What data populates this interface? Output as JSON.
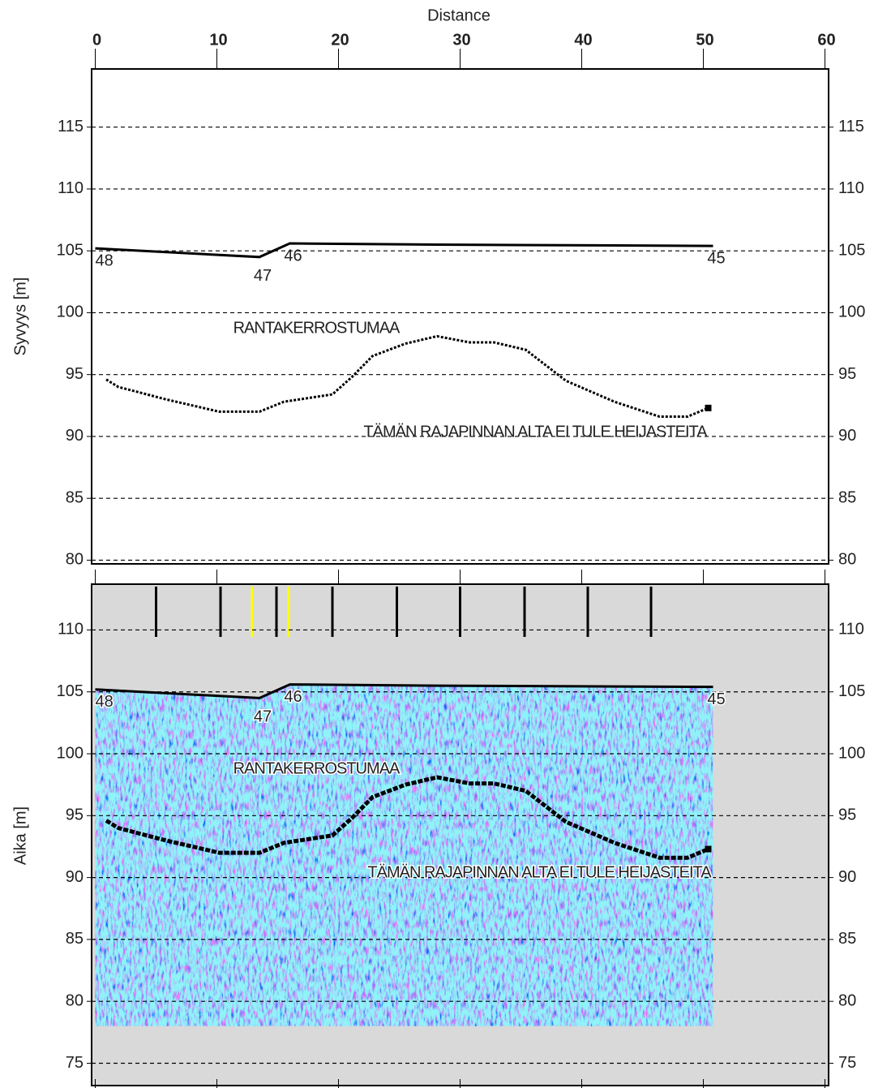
{
  "chart_data": [
    {
      "type": "line",
      "xlabel": "Distance",
      "ylabel": "Syvyys [m]",
      "xlim": [
        -0.3,
        60.3
      ],
      "xticks": [
        0,
        10,
        20,
        30,
        40,
        50,
        60
      ],
      "ylim": [
        79.7,
        119.7
      ],
      "yticks": [
        80,
        85,
        90,
        95,
        100,
        105,
        110,
        115
      ],
      "grid": true,
      "series": [
        {
          "color": "#000000",
          "style": "solid",
          "x": [
            0,
            13.5,
            16,
            28,
            50.8
          ],
          "values": [
            105.2,
            104.5,
            105.6,
            105.5,
            105.4
          ],
          "point_labels": [
            "48",
            "47",
            "46",
            null,
            "45"
          ]
        },
        {
          "color": "#000000",
          "style": "dashed",
          "x": [
            0.9,
            1.9,
            5.8,
            10.2,
            13.5,
            15.5,
            19.5,
            21.1,
            22.8,
            25.5,
            28.1,
            30.8,
            32.8,
            35.4,
            38.7,
            42.7,
            46.4,
            48.7,
            50.4
          ],
          "values": [
            94.6,
            94.0,
            93.0,
            92.0,
            92.0,
            92.8,
            93.4,
            94.8,
            96.5,
            97.5,
            98.1,
            97.6,
            97.6,
            97.0,
            94.5,
            92.8,
            91.6,
            91.6,
            92.3
          ]
        }
      ],
      "annotations": [
        "RANTAKERROSTUMAA",
        "TÄMÄN RAJAPINNAN ALTA EI TULE HEIJASTEITA"
      ]
    },
    {
      "type": "radargram",
      "ylabel": "Aika [m]",
      "xlim": [
        -0.3,
        60.3
      ],
      "xticks": [
        0,
        10,
        20,
        30,
        40,
        50,
        60
      ],
      "ylim": [
        73.0,
        113.7
      ],
      "yticks": [
        75,
        80,
        85,
        90,
        95,
        100,
        105,
        110
      ],
      "grid": true,
      "background": "#d9d9d9",
      "profile_bottom": 78,
      "trace_markers": [
        {
          "x": 5.0,
          "color": "#000000"
        },
        {
          "x": 10.3,
          "color": "#000000"
        },
        {
          "x": 12.9,
          "color": "#ffff00"
        },
        {
          "x": 14.9,
          "color": "#000000"
        },
        {
          "x": 15.9,
          "color": "#ffff00"
        },
        {
          "x": 19.5,
          "color": "#000000"
        },
        {
          "x": 24.8,
          "color": "#000000"
        },
        {
          "x": 30.0,
          "color": "#000000"
        },
        {
          "x": 35.3,
          "color": "#000000"
        },
        {
          "x": 40.5,
          "color": "#000000"
        },
        {
          "x": 45.7,
          "color": "#000000"
        }
      ],
      "series": [
        {
          "color": "#000000",
          "style": "solid",
          "x": [
            0,
            13.5,
            16,
            28,
            50.8
          ],
          "values": [
            105.2,
            104.5,
            105.6,
            105.5,
            105.4
          ],
          "point_labels": [
            "48",
            "47",
            "46",
            null,
            "45"
          ]
        },
        {
          "color": "#000000",
          "style": "dashed",
          "x": [
            0.9,
            1.9,
            5.8,
            10.2,
            13.5,
            15.5,
            19.5,
            21.1,
            22.8,
            25.5,
            28.1,
            30.8,
            32.8,
            35.4,
            38.7,
            42.7,
            46.4,
            48.7,
            50.4
          ],
          "values": [
            94.6,
            94.0,
            93.0,
            92.0,
            92.0,
            92.8,
            93.4,
            94.8,
            96.5,
            97.5,
            98.1,
            97.6,
            97.6,
            97.0,
            94.5,
            92.8,
            91.6,
            91.6,
            92.3
          ]
        }
      ],
      "annotations": [
        "RANTAKERROSTUMAA",
        "TÄMÄN RAJAPINNAN ALTA EI TULE HEIJASTEITA"
      ]
    }
  ]
}
